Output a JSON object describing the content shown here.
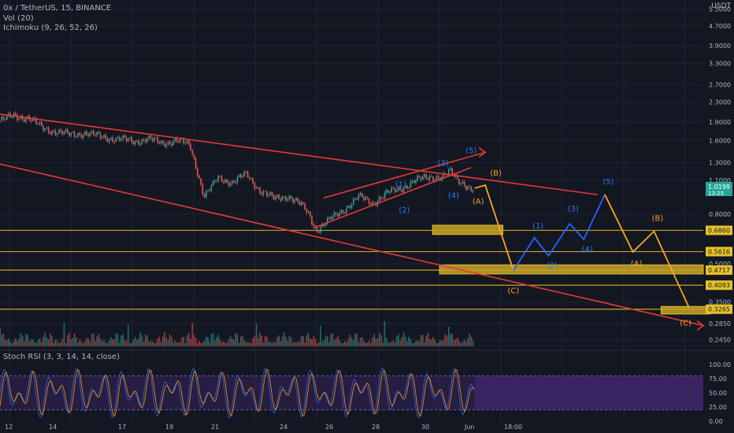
{
  "header": {
    "symbol_line": "0x / TetherUS, 15, BINANCE",
    "vol_label": "Vol (20)",
    "ichimoku_label": "Ichimoku (9, 26, 52, 26)",
    "currency": "USDT",
    "settings_icon": "gear-icon"
  },
  "rsi_label": "Stoch RSI (3, 3, 14, 14, close)",
  "colors": {
    "background": "#131722",
    "grid": "#1f2433",
    "candle_up": "#26a69a",
    "candle_down": "#ef5350",
    "trendline": "#e53935",
    "zone": "#c9a227",
    "projection_orange": "#f5a623",
    "projection_blue": "#2962ff",
    "wave_blue": "#2979ff",
    "rsi_band": "#4a2a7a",
    "rsi_k": "#2962ff",
    "rsi_d": "#ff9800"
  },
  "chart_data": {
    "type": "line",
    "y_scale": "log",
    "ylim": [
      0.23,
      6.0
    ],
    "price_ticks": [
      "5.5000",
      "4.7000",
      "3.9000",
      "3.3000",
      "2.7000",
      "2.3000",
      "1.9000",
      "1.6000",
      "1.3000",
      "1.1000",
      "0.8000",
      "0.5000",
      "0.3500",
      "0.2850",
      "0.2450"
    ],
    "x_ticks": [
      "12",
      "14",
      "17",
      "19",
      "21",
      "24",
      "26",
      "28",
      "30",
      "Jun",
      "18:00"
    ],
    "current_price": "1.0199",
    "countdown": "13:25",
    "price_history": [
      [
        0.0,
        1.92
      ],
      [
        0.02,
        2.02
      ],
      [
        0.04,
        1.98
      ],
      [
        0.06,
        1.8
      ],
      [
        0.08,
        1.74
      ],
      [
        0.1,
        1.68
      ],
      [
        0.12,
        1.72
      ],
      [
        0.14,
        1.66
      ],
      [
        0.17,
        1.62
      ],
      [
        0.19,
        1.58
      ],
      [
        0.21,
        1.63
      ],
      [
        0.23,
        1.55
      ],
      [
        0.25,
        1.61
      ],
      [
        0.27,
        1.52
      ],
      [
        0.28,
        1.22
      ],
      [
        0.29,
        0.95
      ],
      [
        0.3,
        1.02
      ],
      [
        0.31,
        1.12
      ],
      [
        0.33,
        1.08
      ],
      [
        0.35,
        1.16
      ],
      [
        0.37,
        1.0
      ],
      [
        0.39,
        0.92
      ],
      [
        0.41,
        0.95
      ],
      [
        0.43,
        0.86
      ],
      [
        0.44,
        0.79
      ],
      [
        0.45,
        0.69
      ],
      [
        0.47,
        0.76
      ],
      [
        0.49,
        0.84
      ],
      [
        0.51,
        0.94
      ],
      [
        0.53,
        0.89
      ],
      [
        0.55,
        0.97
      ],
      [
        0.57,
        1.02
      ],
      [
        0.59,
        1.09
      ],
      [
        0.61,
        1.14
      ],
      [
        0.63,
        1.13
      ],
      [
        0.64,
        1.19
      ],
      [
        0.65,
        1.11
      ],
      [
        0.66,
        1.07
      ],
      [
        0.67,
        1.0
      ],
      [
        0.675,
        1.02
      ]
    ],
    "trendlines": [
      {
        "from": [
          0.0,
          2.05
        ],
        "to": [
          0.85,
          0.96
        ]
      },
      {
        "from": [
          0.0,
          1.28
        ],
        "to": [
          1.0,
          0.28
        ]
      },
      {
        "from": [
          0.445,
          0.7
        ],
        "to": [
          0.67,
          1.24
        ]
      },
      {
        "from": [
          0.46,
          0.93
        ],
        "to": [
          0.69,
          1.43
        ]
      }
    ],
    "support_levels": [
      "0.6860",
      "0.5616",
      "0.4717",
      "0.4093",
      "0.3265"
    ],
    "zones": [
      {
        "x1": 0.615,
        "x2": 0.715,
        "y1": 0.72,
        "y2": 0.66
      },
      {
        "x1": 0.625,
        "x2": 1.0,
        "y1": 0.495,
        "y2": 0.455
      },
      {
        "x1": 0.94,
        "x2": 1.01,
        "y1": 0.335,
        "y2": 0.312
      }
    ],
    "projection_orange_1": [
      [
        0.675,
        1.02
      ],
      [
        0.69,
        1.05
      ],
      [
        0.73,
        0.47
      ]
    ],
    "projection_blue": [
      [
        0.73,
        0.47
      ],
      [
        0.76,
        0.64
      ],
      [
        0.78,
        0.54
      ],
      [
        0.81,
        0.73
      ],
      [
        0.83,
        0.63
      ],
      [
        0.86,
        0.96
      ]
    ],
    "projection_orange_2": [
      [
        0.86,
        0.96
      ],
      [
        0.9,
        0.56
      ],
      [
        0.93,
        0.68
      ],
      [
        0.98,
        0.33
      ]
    ],
    "wave_labels": [
      {
        "text": "(1)",
        "x": 0.57,
        "y": 1.03,
        "color": "wave_blue"
      },
      {
        "text": "(2)",
        "x": 0.575,
        "y": 0.81,
        "color": "wave_blue"
      },
      {
        "text": "(3)",
        "x": 0.63,
        "y": 1.26,
        "color": "wave_blue"
      },
      {
        "text": "(4)",
        "x": 0.645,
        "y": 0.93,
        "color": "wave_blue"
      },
      {
        "text": "(5)",
        "x": 0.67,
        "y": 1.42,
        "color": "wave_blue"
      },
      {
        "text": "(A)",
        "x": 0.68,
        "y": 0.88,
        "color": "projection_orange"
      },
      {
        "text": "(B)",
        "x": 0.705,
        "y": 1.15,
        "color": "projection_orange"
      },
      {
        "text": "(C)",
        "x": 0.73,
        "y": 0.38,
        "color": "projection_orange"
      },
      {
        "text": "(1)",
        "x": 0.765,
        "y": 0.7,
        "color": "wave_blue"
      },
      {
        "text": "(2)",
        "x": 0.785,
        "y": 0.48,
        "color": "wave_blue"
      },
      {
        "text": "(3)",
        "x": 0.815,
        "y": 0.82,
        "color": "wave_blue"
      },
      {
        "text": "(4)",
        "x": 0.835,
        "y": 0.56,
        "color": "wave_blue"
      },
      {
        "text": "(5)",
        "x": 0.865,
        "y": 1.06,
        "color": "wave_blue"
      },
      {
        "text": "(A)",
        "x": 0.905,
        "y": 0.49,
        "color": "projection_orange"
      },
      {
        "text": "(B)",
        "x": 0.935,
        "y": 0.75,
        "color": "projection_orange"
      },
      {
        "text": "(C)",
        "x": 0.975,
        "y": 0.28,
        "color": "projection_orange"
      }
    ],
    "rsi_ticks": [
      "100.00",
      "75.00",
      "50.00",
      "25.00",
      "0.00"
    ],
    "rsi_band": [
      20,
      80
    ]
  }
}
